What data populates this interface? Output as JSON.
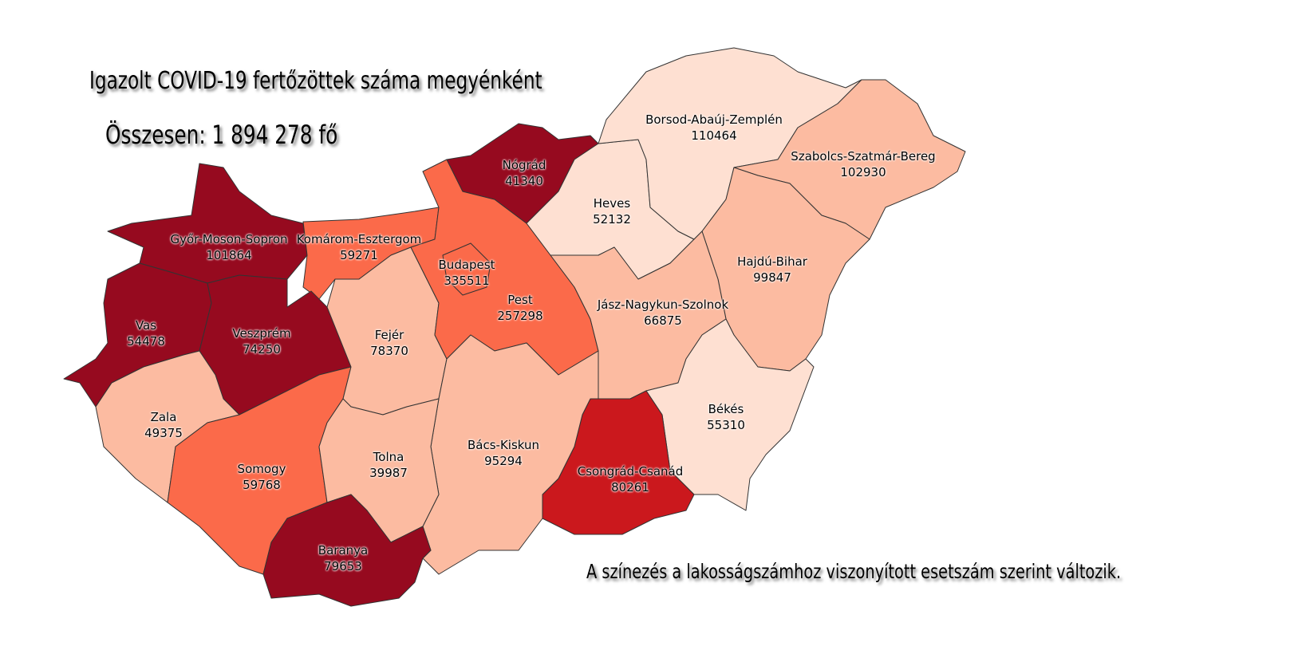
{
  "title": "Igazolt COVID-19 fertőzöttek száma megyénként",
  "total": "Összesen: 1 894 278 fő",
  "note": "A színezés a lakosságszámhoz viszonyított esetszám szerint változik.",
  "colors": {
    "level5": "#960a1f",
    "level4": "#cb181d",
    "level3": "#fb6a4a",
    "level2": "#fcbba1",
    "level1": "#fee0d2",
    "border": "#333333"
  },
  "counties": [
    {
      "name": "Győr-Moson-Sopron",
      "value": "101864",
      "level": "level5"
    },
    {
      "name": "Komárom-Esztergom",
      "value": "59271",
      "level": "level3"
    },
    {
      "name": "Vas",
      "value": "54478",
      "level": "level5"
    },
    {
      "name": "Veszprém",
      "value": "74250",
      "level": "level5"
    },
    {
      "name": "Zala",
      "value": "49375",
      "level": "level2"
    },
    {
      "name": "Somogy",
      "value": "59768",
      "level": "level3"
    },
    {
      "name": "Fejér",
      "value": "78370",
      "level": "level2"
    },
    {
      "name": "Pest",
      "value": "257298",
      "level": "level3"
    },
    {
      "name": "Budapest",
      "value": "335511",
      "level": "level3"
    },
    {
      "name": "Nógrád",
      "value": "41340",
      "level": "level5"
    },
    {
      "name": "Heves",
      "value": "52132",
      "level": "level1"
    },
    {
      "name": "Borsod-Abaúj-Zemplén",
      "value": "110464",
      "level": "level1"
    },
    {
      "name": "Szabolcs-Szatmár-Bereg",
      "value": "102930",
      "level": "level2"
    },
    {
      "name": "Hajdú-Bihar",
      "value": "99847",
      "level": "level2"
    },
    {
      "name": "Jász-Nagykun-Szolnok",
      "value": "66875",
      "level": "level2"
    },
    {
      "name": "Békés",
      "value": "55310",
      "level": "level1"
    },
    {
      "name": "Csongrád-Csanád",
      "value": "80261",
      "level": "level4"
    },
    {
      "name": "Bács-Kiskun",
      "value": "95294",
      "level": "level2"
    },
    {
      "name": "Tolna",
      "value": "39987",
      "level": "level2"
    },
    {
      "name": "Baranya",
      "value": "79653",
      "level": "level5"
    }
  ]
}
